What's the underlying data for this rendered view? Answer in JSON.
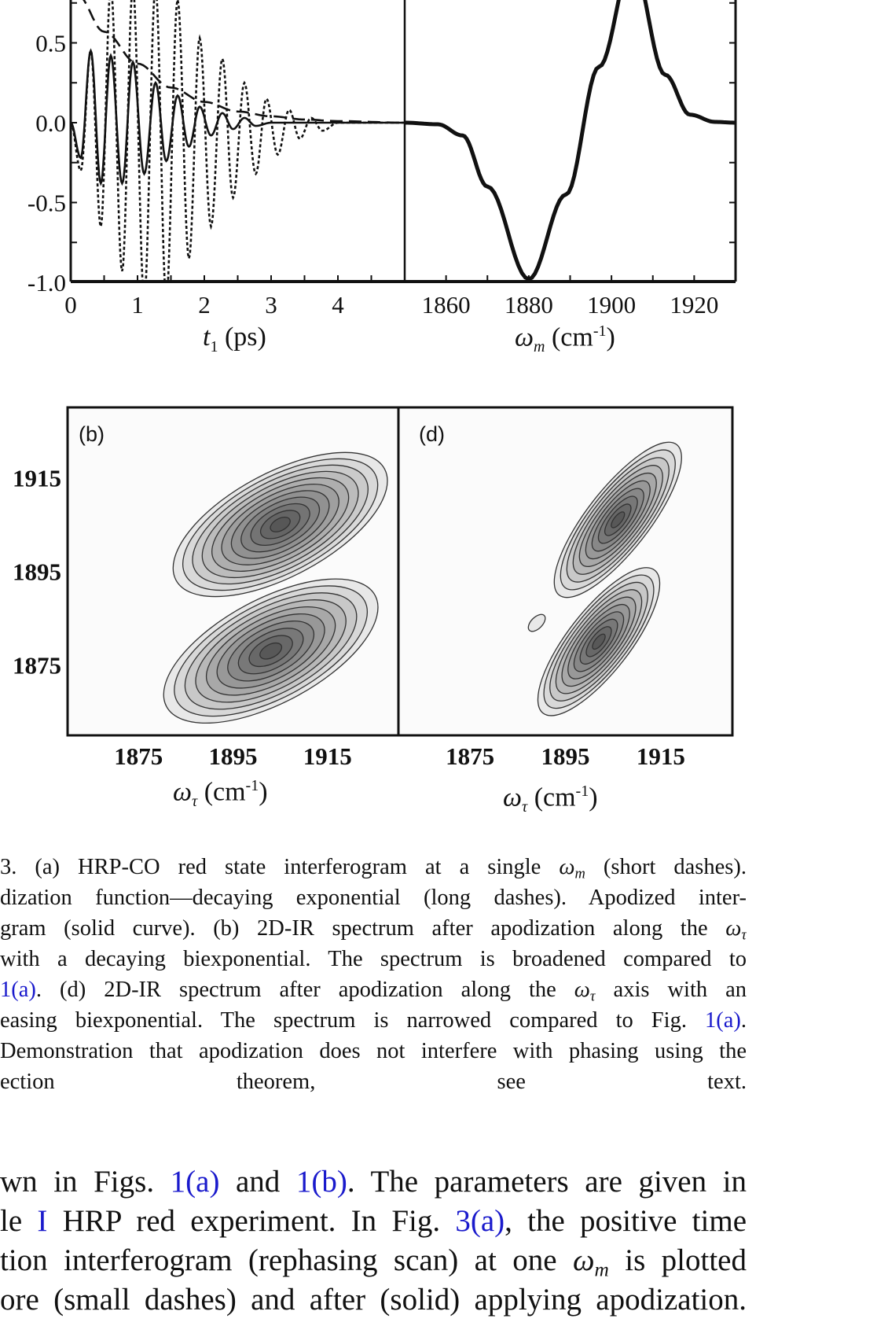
{
  "figure": {
    "panel_labels": [
      "(b)",
      "(d)"
    ],
    "colors": {
      "ink": "#111111",
      "contour_fill_light": "#e6e6e6",
      "contour_fill_dark": "#4a4a4a",
      "link": "#1a1acc"
    }
  },
  "chart_data": [
    {
      "type": "line",
      "panel": "a (left)",
      "xlabel": {
        "var": "t",
        "sub": "1",
        "unit": " (ps)"
      },
      "xlim": [
        0,
        5
      ],
      "ylim": [
        -1.0,
        0.77
      ],
      "xticks": [
        "0",
        "1",
        "2",
        "3",
        "4"
      ],
      "yticks": [
        "0.5",
        "0.0",
        "-0.5",
        "-1.0"
      ],
      "series": [
        {
          "style": "short-dashes",
          "points": [
            [
              0,
              0
            ],
            [
              0.15,
              -0.3
            ],
            [
              0.3,
              0.45
            ],
            [
              0.45,
              -0.65
            ],
            [
              0.6,
              0.85
            ],
            [
              0.77,
              -0.93
            ],
            [
              0.93,
              0.85
            ],
            [
              1.1,
              -1.1
            ],
            [
              1.27,
              0.85
            ],
            [
              1.43,
              -1.1
            ],
            [
              1.6,
              0.77
            ],
            [
              1.77,
              -0.85
            ],
            [
              1.93,
              0.53
            ],
            [
              2.1,
              -0.65
            ],
            [
              2.27,
              0.4
            ],
            [
              2.43,
              -0.47
            ],
            [
              2.6,
              0.25
            ],
            [
              2.77,
              -0.32
            ],
            [
              2.93,
              0.15
            ],
            [
              3.1,
              -0.2
            ],
            [
              3.27,
              0.08
            ],
            [
              3.43,
              -0.1
            ],
            [
              3.6,
              0.03
            ],
            [
              3.77,
              -0.05
            ],
            [
              4.0,
              0.0
            ],
            [
              5.0,
              0.0
            ]
          ]
        },
        {
          "style": "long-dashes",
          "points": [
            [
              0.1,
              0.8
            ],
            [
              0.5,
              0.57
            ],
            [
              1.0,
              0.37
            ],
            [
              1.5,
              0.22
            ],
            [
              2.0,
              0.13
            ],
            [
              2.5,
              0.07
            ],
            [
              3.0,
              0.04
            ],
            [
              3.5,
              0.02
            ],
            [
              4.0,
              0.01
            ],
            [
              5.0,
              0.0
            ]
          ]
        },
        {
          "style": "solid",
          "points": [
            [
              0,
              0
            ],
            [
              0.15,
              -0.22
            ],
            [
              0.3,
              0.45
            ],
            [
              0.45,
              -0.38
            ],
            [
              0.6,
              0.42
            ],
            [
              0.77,
              -0.38
            ],
            [
              0.93,
              0.38
            ],
            [
              1.1,
              -0.32
            ],
            [
              1.27,
              0.25
            ],
            [
              1.43,
              -0.24
            ],
            [
              1.6,
              0.17
            ],
            [
              1.77,
              -0.15
            ],
            [
              1.93,
              0.1
            ],
            [
              2.1,
              -0.08
            ],
            [
              2.27,
              0.06
            ],
            [
              2.43,
              -0.04
            ],
            [
              2.6,
              0.03
            ],
            [
              2.77,
              -0.02
            ],
            [
              3.0,
              0.0
            ],
            [
              5.0,
              0.0
            ]
          ]
        }
      ]
    },
    {
      "type": "line",
      "panel": "a (right)",
      "xlabel": {
        "var": "ω",
        "sub": "m",
        "unit": " (cm",
        "sup": "-1",
        "close": ")"
      },
      "xlim": [
        1850,
        1930
      ],
      "ylim": [
        -1.0,
        0.77
      ],
      "xticks": [
        "1860",
        "1880",
        "1900",
        "1920"
      ],
      "series": [
        {
          "style": "solid",
          "points": [
            [
              1850,
              0
            ],
            [
              1858,
              -0.01
            ],
            [
              1864,
              -0.08
            ],
            [
              1870,
              -0.4
            ],
            [
              1880,
              -0.98
            ],
            [
              1889,
              -0.45
            ],
            [
              1897,
              0.35
            ],
            [
              1905,
              1.0
            ],
            [
              1913,
              0.3
            ],
            [
              1919,
              0.05
            ],
            [
              1925,
              0.005
            ],
            [
              1930,
              0
            ]
          ]
        }
      ]
    },
    {
      "type": "contour",
      "panel": "b",
      "xlabel": {
        "var": "ω",
        "sub": "τ",
        "unit": " (cm",
        "sup": "-1",
        "close": ")"
      },
      "xlim": [
        1860,
        1930
      ],
      "ylim": [
        1860,
        1930
      ],
      "xticks": [
        "1875",
        "1895",
        "1915"
      ],
      "yticks": [
        "1915",
        "1895",
        "1875"
      ],
      "peaks": [
        {
          "center": [
            1905,
            1905
          ],
          "major": 25,
          "minor": 11,
          "angle_deg": 28,
          "levels": 11
        },
        {
          "center": [
            1903,
            1878
          ],
          "major": 25,
          "minor": 11,
          "angle_deg": 28,
          "levels": 10
        }
      ]
    },
    {
      "type": "contour",
      "panel": "d",
      "xlabel": {
        "var": "ω",
        "sub": "τ",
        "unit": " (cm",
        "sup": "-1",
        "close": ")"
      },
      "xlim": [
        1860,
        1930
      ],
      "ylim": [
        1860,
        1930
      ],
      "xticks": [
        "1875",
        "1895",
        "1915"
      ],
      "peaks": [
        {
          "center": [
            1906,
            1906
          ],
          "major": 20,
          "minor": 6.5,
          "angle_deg": 52,
          "levels": 10
        },
        {
          "center": [
            1902,
            1880
          ],
          "major": 19,
          "minor": 6.5,
          "angle_deg": 52,
          "levels": 10
        },
        {
          "center": [
            1889,
            1884
          ],
          "major": 2.2,
          "minor": 1.2,
          "angle_deg": 45,
          "levels": 1
        }
      ]
    }
  ],
  "caption": [
    [
      {
        "t": " 3.  (a) HRP-CO red state interferogram at a single "
      },
      {
        "t": "ω",
        "i": 1
      },
      {
        "t": "m",
        "s": 1
      },
      {
        "t": " (short dashes)."
      }
    ],
    [
      {
        "t": "dization function—decaying exponential (long dashes). Apodized inter-"
      }
    ],
    [
      {
        "t": "gram (solid curve). (b) 2D-IR spectrum after apodization along the "
      },
      {
        "t": "ω",
        "i": 1
      },
      {
        "t": "τ",
        "s": 1
      }
    ],
    [
      {
        "t": " with a decaying biexponential. The spectrum is broadened compared to"
      }
    ],
    [
      {
        "t": " "
      },
      {
        "t": "1(a)",
        "l": 1
      },
      {
        "t": ". (d) 2D-IR spectrum after apodization along the "
      },
      {
        "t": "ω",
        "i": 1
      },
      {
        "t": "τ",
        "s": 1
      },
      {
        "t": " axis with an"
      }
    ],
    [
      {
        "t": "easing biexponential. The spectrum is narrowed compared to Fig. "
      },
      {
        "t": "1(a)",
        "l": 1
      },
      {
        "t": "."
      }
    ],
    [
      {
        "t": "Demonstration that apodization does not interfere with phasing using the"
      }
    ],
    [
      {
        "t": "ection theorem, see text."
      }
    ]
  ],
  "body": [
    [
      {
        "t": "wn in Figs. "
      },
      {
        "t": "1(a)",
        "l": 1
      },
      {
        "t": " and "
      },
      {
        "t": "1(b)",
        "l": 1
      },
      {
        "t": ". The parameters are given in"
      }
    ],
    [
      {
        "t": "le "
      },
      {
        "t": "I",
        "l": 1
      },
      {
        "t": " HRP red experiment. In Fig. "
      },
      {
        "t": "3(a)",
        "l": 1
      },
      {
        "t": ", the positive time"
      }
    ],
    [
      {
        "t": "tion interferogram (rephasing scan) at one "
      },
      {
        "t": "ω",
        "i": 1
      },
      {
        "t": "m",
        "s": 1
      },
      {
        "t": " is plotted"
      }
    ],
    [
      {
        "t": "ore (small dashes) and after (solid) applying apodization."
      }
    ]
  ]
}
